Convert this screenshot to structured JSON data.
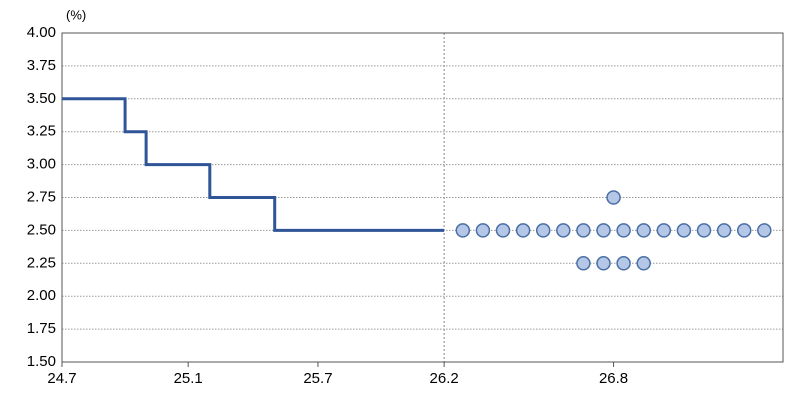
{
  "chart_data": {
    "type": "step-dot",
    "unit_label": "(%)",
    "ylim": [
      1.5,
      4.0
    ],
    "yticks": [
      {
        "value": 1.5,
        "label": "1.50"
      },
      {
        "value": 1.75,
        "label": "1.75"
      },
      {
        "value": 2.0,
        "label": "2.00"
      },
      {
        "value": 2.25,
        "label": "2.25"
      },
      {
        "value": 2.5,
        "label": "2.50"
      },
      {
        "value": 2.75,
        "label": "2.75"
      },
      {
        "value": 3.0,
        "label": "3.00"
      },
      {
        "value": 3.25,
        "label": "3.25"
      },
      {
        "value": 3.5,
        "label": "3.50"
      },
      {
        "value": 3.75,
        "label": "3.75"
      },
      {
        "value": 4.0,
        "label": "4.00"
      }
    ],
    "xticks": [
      "24.7",
      "25.1",
      "25.7",
      "26.2",
      "26.8"
    ],
    "divider_x": "26.2",
    "grid": true,
    "line": {
      "x": [
        "24.7",
        "24.10",
        "24.11",
        "25.2",
        "25.5",
        "26.2"
      ],
      "values": [
        3.5,
        3.25,
        3.0,
        2.75,
        2.5,
        2.5
      ],
      "color": "#2f5597"
    },
    "dots": {
      "x": "26.8",
      "levels": [
        2.75,
        2.5,
        2.25
      ],
      "counts": [
        1,
        16,
        4
      ],
      "color": "#b4c7e7",
      "edge": "#4a6fa5"
    }
  }
}
